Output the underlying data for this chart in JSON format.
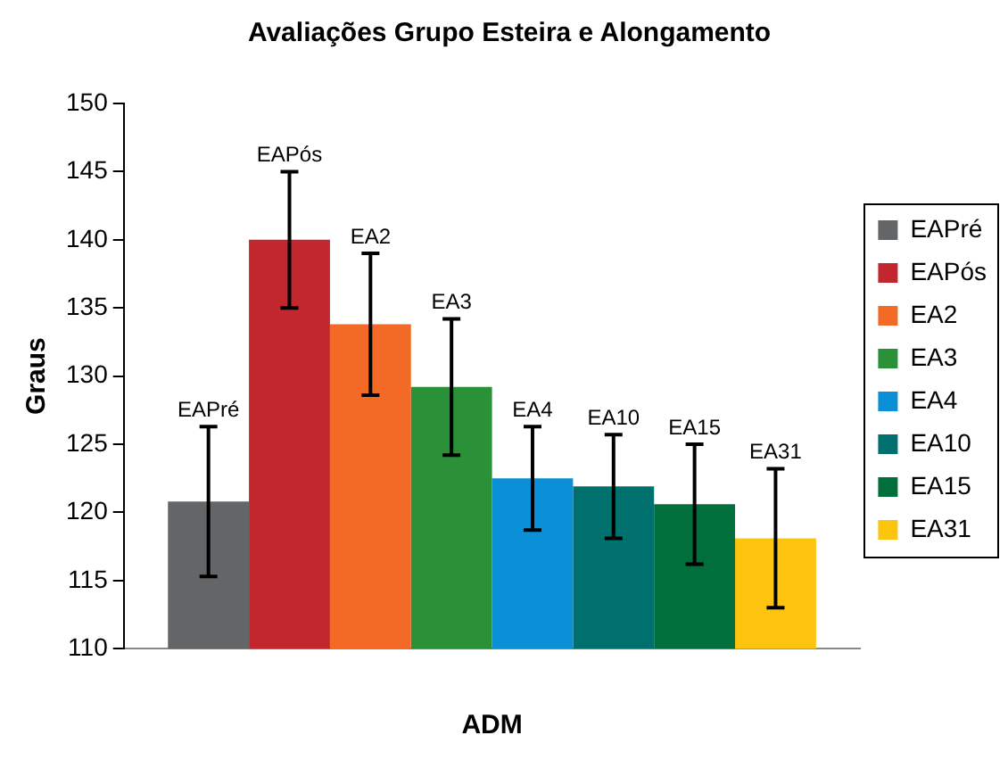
{
  "chart_data": {
    "type": "bar",
    "title": "Avaliações Grupo Esteira e Alongamento",
    "xlabel": "ADM",
    "ylabel": "Graus",
    "categories": [
      null
    ],
    "ylim": [
      110,
      150
    ],
    "yticks": [
      110,
      115,
      120,
      125,
      130,
      135,
      140,
      145,
      150
    ],
    "grid": false,
    "legend": "right",
    "series": [
      {
        "name": "EAPré",
        "color": "#646567",
        "values": [
          120.8
        ],
        "errors": [
          5.5
        ]
      },
      {
        "name": "EAPós",
        "color": "#c1272d",
        "values": [
          140
        ],
        "errors": [
          5
        ]
      },
      {
        "name": "EA2",
        "color": "#f26a25",
        "values": [
          133.8
        ],
        "errors": [
          5.2
        ]
      },
      {
        "name": "EA3",
        "color": "#2a9139",
        "values": [
          129.2
        ],
        "errors": [
          5
        ]
      },
      {
        "name": "EA4",
        "color": "#0b8fd6",
        "values": [
          122.5
        ],
        "errors": [
          3.8
        ]
      },
      {
        "name": "EA10",
        "color": "#00706e",
        "values": [
          121.9
        ],
        "errors": [
          3.8
        ]
      },
      {
        "name": "EA15",
        "color": "#006f3b",
        "values": [
          120.6
        ],
        "errors": [
          4.4
        ]
      },
      {
        "name": "EA31",
        "color": "#fcc30f",
        "values": [
          118.1
        ],
        "errors": [
          5.1
        ]
      }
    ]
  }
}
